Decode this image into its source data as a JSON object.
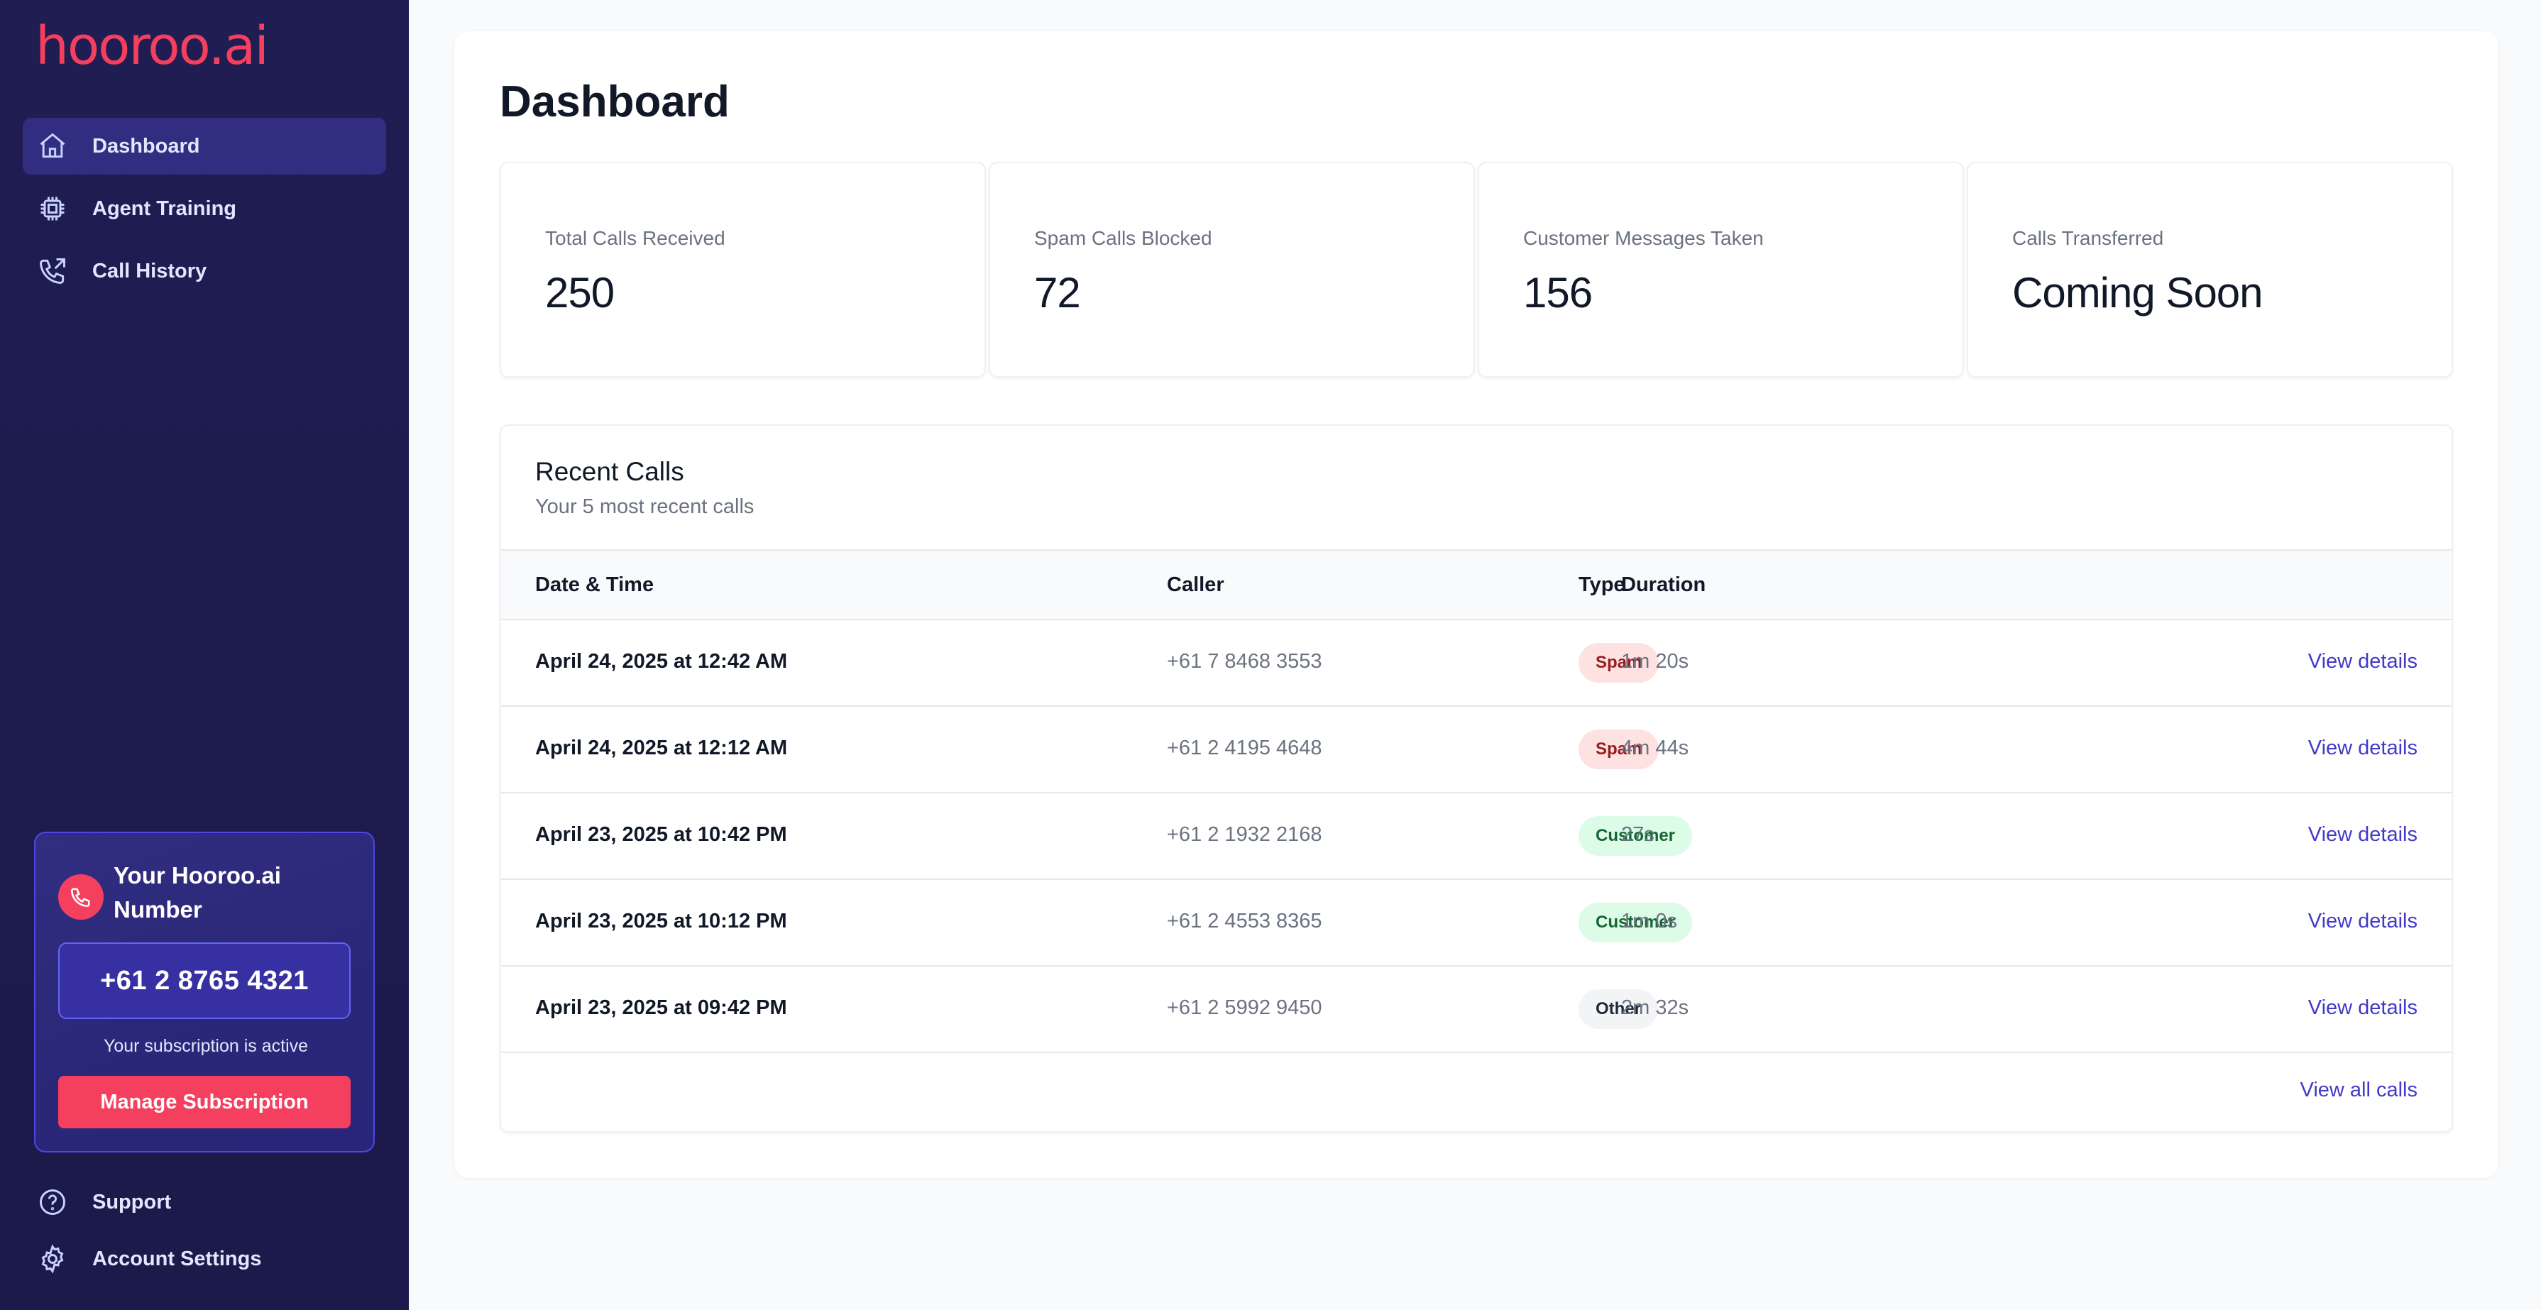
{
  "brand": {
    "logo_text": "hooroo.ai",
    "accent": "#f43f5e",
    "sidebar_bg": "#1e1b4b"
  },
  "sidebar": {
    "items": [
      {
        "label": "Dashboard",
        "icon": "home-icon",
        "active": true
      },
      {
        "label": "Agent Training",
        "icon": "chip-icon",
        "active": false
      },
      {
        "label": "Call History",
        "icon": "phone-outgoing-icon",
        "active": false
      }
    ],
    "number_card": {
      "title": "Your Hooroo.ai Number",
      "icon": "phone-icon",
      "number": "+61 2 8765 4321",
      "status": "Your subscription is active",
      "button_label": "Manage Subscription"
    },
    "bottom_items": [
      {
        "label": "Support",
        "icon": "help-circle-icon"
      },
      {
        "label": "Account Settings",
        "icon": "gear-icon"
      }
    ]
  },
  "main": {
    "title": "Dashboard",
    "stats": [
      {
        "label": "Total Calls Received",
        "value": "250"
      },
      {
        "label": "Spam Calls Blocked",
        "value": "72"
      },
      {
        "label": "Customer Messages Taken",
        "value": "156"
      },
      {
        "label": "Calls Transferred",
        "value": "Coming Soon"
      }
    ],
    "recent_calls": {
      "title": "Recent Calls",
      "subtitle": "Your 5 most recent calls",
      "columns": [
        "Date & Time",
        "Caller",
        "Type",
        "Duration"
      ],
      "rows": [
        {
          "datetime": "April 24, 2025 at 12:42 AM",
          "caller": "+61 7 8468 3553",
          "type": "Spam",
          "type_style": "spam",
          "duration": "1m 20s",
          "action": "View details"
        },
        {
          "datetime": "April 24, 2025 at 12:12 AM",
          "caller": "+61 2 4195 4648",
          "type": "Spam",
          "type_style": "spam",
          "duration": "4m 44s",
          "action": "View details"
        },
        {
          "datetime": "April 23, 2025 at 10:42 PM",
          "caller": "+61 2 1932 2168",
          "type": "Customer",
          "type_style": "customer",
          "duration": "27s",
          "action": "View details"
        },
        {
          "datetime": "April 23, 2025 at 10:12 PM",
          "caller": "+61 2 4553 8365",
          "type": "Customer",
          "type_style": "customer",
          "duration": "1m 0s",
          "action": "View details"
        },
        {
          "datetime": "April 23, 2025 at 09:42 PM",
          "caller": "+61 2 5992 9450",
          "type": "Other",
          "type_style": "other",
          "duration": "2m 32s",
          "action": "View details"
        }
      ],
      "view_all": "View all calls"
    }
  }
}
